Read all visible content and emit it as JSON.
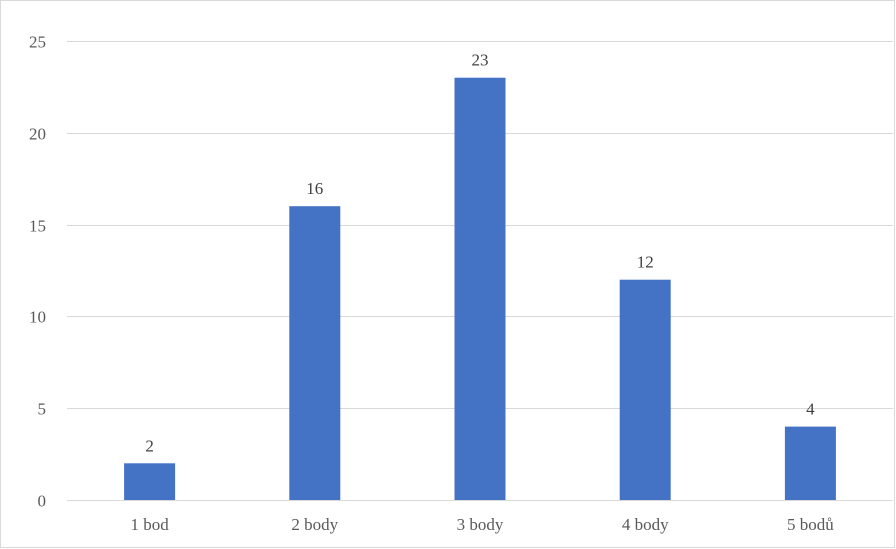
{
  "chart_data": {
    "type": "bar",
    "title": "",
    "xlabel": "",
    "ylabel": "",
    "categories": [
      "1 bod",
      "2 body",
      "3 body",
      "4 body",
      "5 bodů"
    ],
    "values": [
      2,
      16,
      23,
      12,
      4
    ],
    "ylim": [
      0,
      25
    ],
    "yticks": [
      0,
      5,
      10,
      15,
      20,
      25
    ],
    "grid": true,
    "legend": "none",
    "data_labels": true,
    "bar_color": "#4472c4",
    "grid_color": "#d9d9d9",
    "tick_label_color": "#595959"
  }
}
